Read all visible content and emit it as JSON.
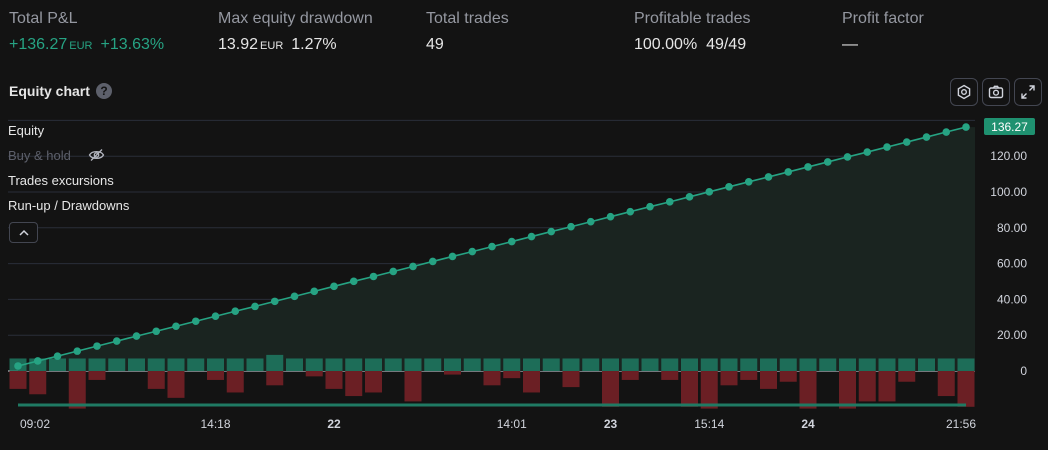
{
  "metrics": [
    {
      "label": "Total P&L",
      "value": "+136.27",
      "currency": "EUR",
      "extra": "+13.63%",
      "positive": true
    },
    {
      "label": "Max equity drawdown",
      "value": "13.92",
      "currency": "EUR",
      "extra": "1.27%",
      "positive": false
    },
    {
      "label": "Total trades",
      "value": "49",
      "currency": "",
      "extra": "",
      "positive": false
    },
    {
      "label": "Profitable trades",
      "value": "100.00%",
      "currency": "",
      "extra": "49/49",
      "positive": false
    },
    {
      "label": "Profit factor",
      "value": "—",
      "currency": "",
      "extra": "",
      "positive": false
    }
  ],
  "chart_header": {
    "title": "Equity chart",
    "help": "?"
  },
  "toolbar": {
    "icons": [
      "settings-icon",
      "camera-icon",
      "fullscreen-icon"
    ]
  },
  "legend": {
    "equity": "Equity",
    "buy_hold": "Buy & hold",
    "excursions": "Trades excursions",
    "runup": "Run-up / Drawdowns"
  },
  "last_value": "136.27",
  "colors": {
    "equity": "#26a383",
    "drawdown": "#6b1f24",
    "runup": "#1f7a63",
    "background": "#131313"
  },
  "chart_data": {
    "type": "line",
    "title": "",
    "xlabel": "",
    "ylabel": "",
    "ylim": [
      -20,
      140
    ],
    "y_ticks": [
      "120.00",
      "100.00",
      "80.00",
      "60.00",
      "40.00",
      "20.00",
      "0"
    ],
    "y_tick_values": [
      120,
      100,
      80,
      60,
      40,
      20,
      0
    ],
    "x_tick_labels": [
      "09:02",
      "14:18",
      "22",
      "14:01",
      "23",
      "15:14",
      "24",
      "21:56"
    ],
    "x_tick_trade_index": [
      1,
      11,
      17,
      26,
      31,
      36,
      41,
      49
    ],
    "x_tick_bold": [
      false,
      false,
      true,
      false,
      true,
      false,
      true,
      false
    ],
    "series": [
      {
        "name": "Equity",
        "x": [
          1,
          2,
          3,
          4,
          5,
          6,
          7,
          8,
          9,
          10,
          11,
          12,
          13,
          14,
          15,
          16,
          17,
          18,
          19,
          20,
          21,
          22,
          23,
          24,
          25,
          26,
          27,
          28,
          29,
          30,
          31,
          32,
          33,
          34,
          35,
          36,
          37,
          38,
          39,
          40,
          41,
          42,
          43,
          44,
          45,
          46,
          47,
          48,
          49
        ],
        "values": [
          2.8,
          5.6,
          8.3,
          11.1,
          13.9,
          16.7,
          19.5,
          22.2,
          25.0,
          27.8,
          30.6,
          33.4,
          36.1,
          38.9,
          41.7,
          44.5,
          47.3,
          50.1,
          52.8,
          55.6,
          58.4,
          61.2,
          64.0,
          66.7,
          69.5,
          72.3,
          75.1,
          77.9,
          80.6,
          83.4,
          86.2,
          89.0,
          91.8,
          94.5,
          97.3,
          100.1,
          102.9,
          105.7,
          108.4,
          111.2,
          114.0,
          116.8,
          119.6,
          122.3,
          125.1,
          127.9,
          130.7,
          133.5,
          136.27
        ]
      },
      {
        "name": "Run-up",
        "values": [
          7,
          7,
          7,
          7,
          7,
          7,
          7,
          7,
          7,
          7,
          7,
          7,
          7,
          9,
          7,
          7,
          7,
          7,
          7,
          7,
          7,
          7,
          7,
          7,
          7,
          7,
          7,
          7,
          7,
          7,
          7,
          7,
          7,
          7,
          7,
          7,
          7,
          7,
          7,
          7,
          7,
          7,
          7,
          7,
          7,
          7,
          7,
          7,
          7
        ]
      },
      {
        "name": "Drawdown",
        "values": [
          -10,
          -13,
          0,
          -21,
          -5,
          0,
          0,
          -10,
          -15,
          0,
          -5,
          -12,
          0,
          -8,
          0,
          -3,
          -10,
          -14,
          -12,
          0,
          -17,
          0,
          -2,
          0,
          -8,
          -4,
          -12,
          0,
          -9,
          0,
          -20,
          -5,
          0,
          -5,
          -20,
          -21,
          -8,
          -5,
          -10,
          -6,
          -21,
          0,
          -21,
          -17,
          -17,
          -6,
          0,
          -14,
          -20
        ]
      }
    ]
  }
}
